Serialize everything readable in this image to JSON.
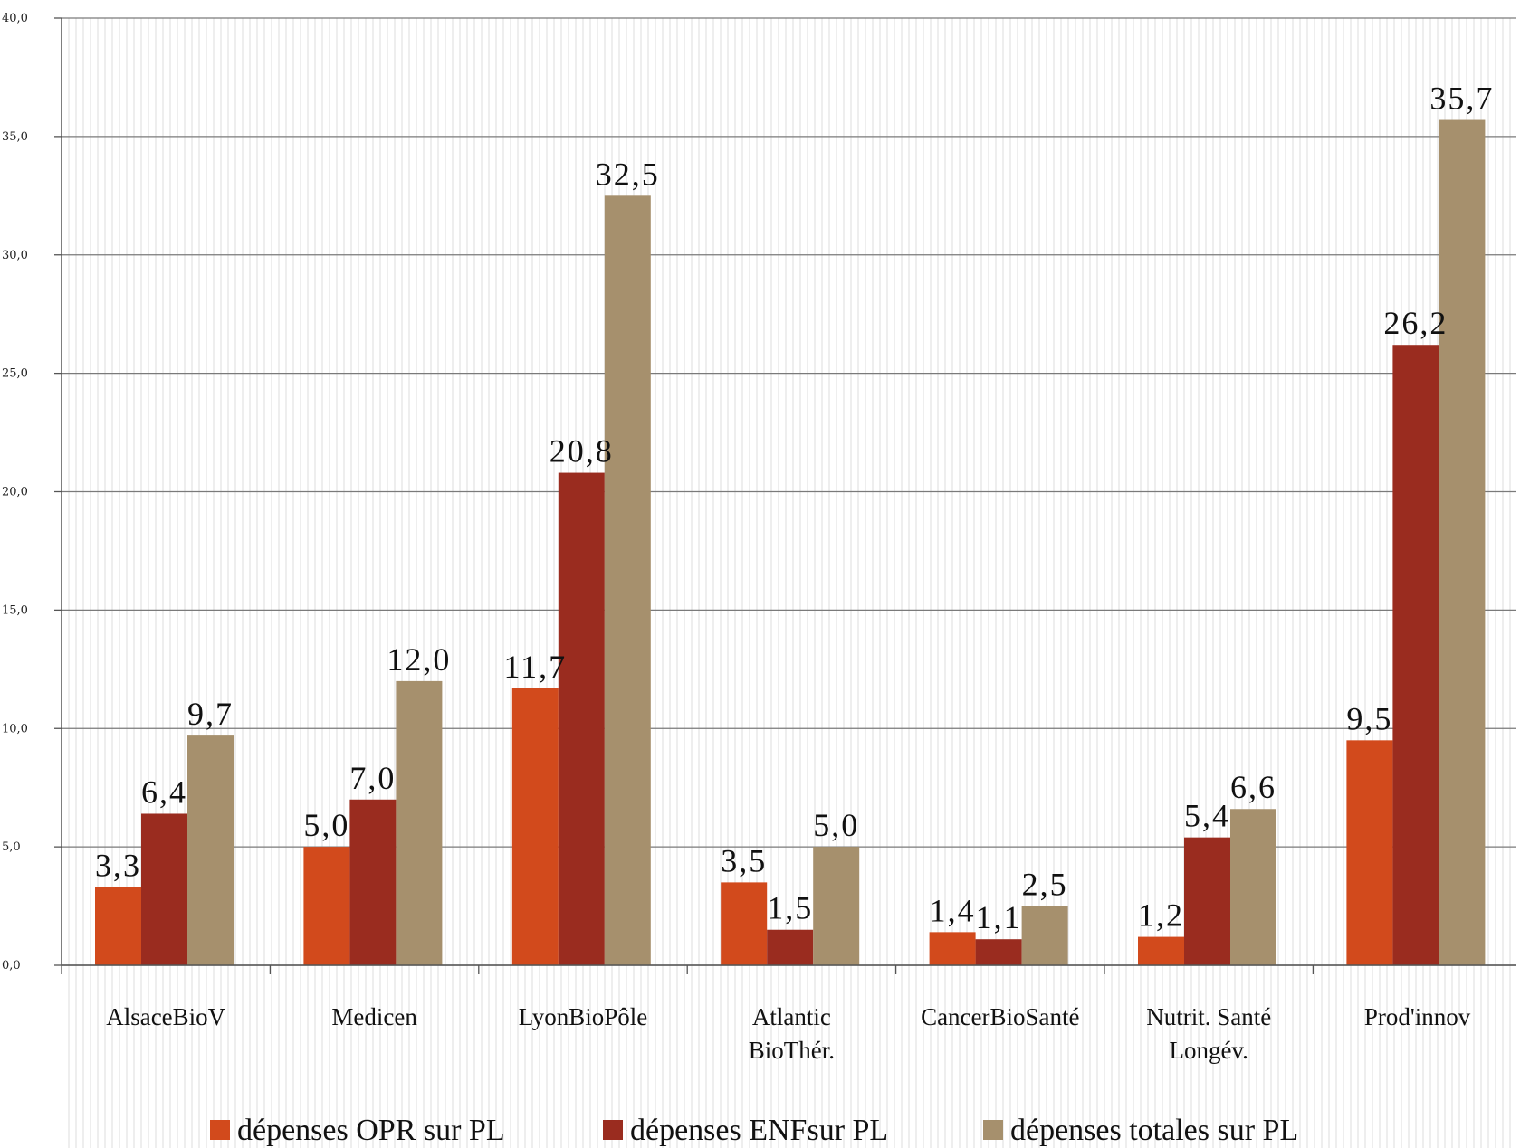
{
  "chart_data": {
    "type": "bar",
    "title": "",
    "xlabel": "",
    "ylabel": "",
    "ylim": [
      0,
      40
    ],
    "ytick_values": [
      0,
      5,
      10,
      15,
      20,
      25,
      30,
      35,
      40
    ],
    "ytick_labels": [
      "0,0",
      "5,0",
      "10,0",
      "15,0",
      "20,0",
      "25,0",
      "30,0",
      "35,0",
      "40,0"
    ],
    "grid": true,
    "legend_position": "bottom",
    "categories": [
      [
        "AlsaceBioV"
      ],
      [
        "Medicen"
      ],
      [
        "LyonBioPôle"
      ],
      [
        "Atlantic",
        "BioThér."
      ],
      [
        "CancerBioSanté"
      ],
      [
        "Nutrit. Santé",
        "Longév."
      ],
      [
        "Prod'innov"
      ]
    ],
    "series": [
      {
        "name": "dépenses OPR sur PL",
        "color": "#d24a1c",
        "values": [
          3.3,
          5.0,
          11.7,
          3.5,
          1.4,
          1.2,
          9.5
        ],
        "labels": [
          "3,3",
          "5,0",
          "11,7",
          "3,5",
          "1,4",
          "1,2",
          "9,5"
        ]
      },
      {
        "name": "dépenses ENFsur PL",
        "color": "#9a2c1f",
        "values": [
          6.4,
          7.0,
          20.8,
          1.5,
          1.1,
          5.4,
          26.2
        ],
        "labels": [
          "6,4",
          "7,0",
          "20,8",
          "1,5",
          "1,1",
          "5,4",
          "26,2"
        ]
      },
      {
        "name": "dépenses totales sur PL",
        "color": "#a6906d",
        "values": [
          9.7,
          12.0,
          32.5,
          5.0,
          2.5,
          6.6,
          35.7
        ],
        "labels": [
          "9,7",
          "12,0",
          "32,5",
          "5,0",
          "2,5",
          "6,6",
          "35,7"
        ]
      }
    ]
  }
}
